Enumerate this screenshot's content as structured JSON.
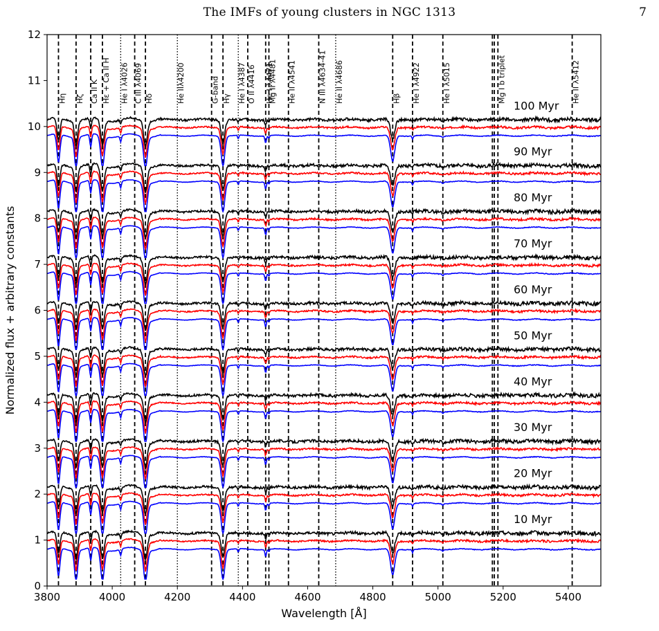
{
  "page": {
    "running_title": "The IMFs of young clusters in NGC 1313",
    "page_number": "7"
  },
  "chart_data": {
    "type": "line",
    "title": "",
    "xlabel": "Wavelength [Å]",
    "ylabel": "Normalized flux + arbitrary constants",
    "xlim": [
      3800,
      5500
    ],
    "ylim": [
      0,
      12
    ],
    "xticks": [
      3800,
      4000,
      4200,
      4400,
      4600,
      4800,
      5000,
      5200,
      5400
    ],
    "yticks": [
      0,
      1,
      2,
      3,
      4,
      5,
      6,
      7,
      8,
      9,
      10,
      11,
      12
    ],
    "grid": false,
    "series_colors": {
      "black": "#000000",
      "red": "#ff0000",
      "blue": "#0000ff"
    },
    "ages": [
      {
        "label": "10 Myr",
        "offset": 0
      },
      {
        "label": "20 Myr",
        "offset": 1
      },
      {
        "label": "30 Myr",
        "offset": 2
      },
      {
        "label": "40 Myr",
        "offset": 3
      },
      {
        "label": "50 Myr",
        "offset": 4
      },
      {
        "label": "60 Myr",
        "offset": 5
      },
      {
        "label": "70 Myr",
        "offset": 6
      },
      {
        "label": "80 Myr",
        "offset": 7
      },
      {
        "label": "90 Myr",
        "offset": 8
      },
      {
        "label": "100 Myr",
        "offset": 9
      }
    ],
    "continuum_levels": {
      "black": 1.15,
      "red": 0.98,
      "blue": 0.8
    },
    "absorption_lines": [
      {
        "wavelength": 3835,
        "label": "Hη",
        "style": "dashed"
      },
      {
        "wavelength": 3889,
        "label": "Hζ",
        "style": "dashed"
      },
      {
        "wavelength": 3934,
        "label": "Ca II K",
        "style": "dashed"
      },
      {
        "wavelength": 3970,
        "label": "Hε + Ca II H",
        "style": "dashed"
      },
      {
        "wavelength": 4026,
        "label": "He I λ4026",
        "style": "dotted"
      },
      {
        "wavelength": 4069,
        "label": "C III λ4069",
        "style": "dashed"
      },
      {
        "wavelength": 4102,
        "label": "Hδ",
        "style": "dashed"
      },
      {
        "wavelength": 4200,
        "label": "He IIλ4200",
        "style": "dotted"
      },
      {
        "wavelength": 4305,
        "label": "G-band",
        "style": "dashed"
      },
      {
        "wavelength": 4340,
        "label": "Hγ",
        "style": "dashed"
      },
      {
        "wavelength": 4387,
        "label": "He I λ4387",
        "style": "dotted"
      },
      {
        "wavelength": 4416,
        "label": "O II λ4416",
        "style": "dashed"
      },
      {
        "wavelength": 4471,
        "label": "He I λ4471",
        "style": "dashed"
      },
      {
        "wavelength": 4481,
        "label": "Mg II λ4481",
        "style": "dashed"
      },
      {
        "wavelength": 4541,
        "label": "He II λ4541",
        "style": "dashed"
      },
      {
        "wavelength": 4634,
        "label": "N III λ4634-41",
        "style": "dashed"
      },
      {
        "wavelength": 4686,
        "label": "He II λ4686",
        "style": "dotted"
      },
      {
        "wavelength": 4861,
        "label": "Hβ",
        "style": "dashed"
      },
      {
        "wavelength": 4922,
        "label": "He I λ4922",
        "style": "dashed"
      },
      {
        "wavelength": 5015,
        "label": "He I λ5015",
        "style": "dashed"
      },
      {
        "wavelength": 5167,
        "label": "",
        "style": "dashed"
      },
      {
        "wavelength": 5173,
        "label": "",
        "style": "dashed"
      },
      {
        "wavelength": 5184,
        "label": "Mg I b triplet",
        "style": "dashed"
      },
      {
        "wavelength": 5412,
        "label": "He II λ5412",
        "style": "dashed"
      }
    ]
  }
}
